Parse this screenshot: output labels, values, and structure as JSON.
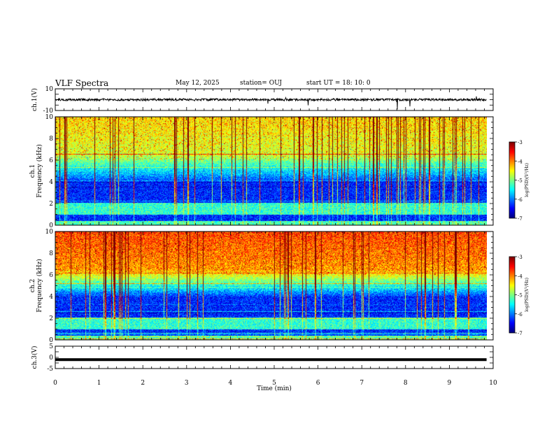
{
  "header": {
    "title": "VLF Spectra",
    "date": "May 12, 2025",
    "station": "station= OUJ",
    "start": "start  UT =   18: 10: 0"
  },
  "chart_data": [
    {
      "type": "line",
      "ylabel": "ch.1(V)",
      "ylim": [
        -10,
        10
      ],
      "yticks": [
        "10",
        "-10"
      ],
      "xlim": [
        0,
        10
      ],
      "mean_value": 0,
      "grid": false
    },
    {
      "type": "heatmap",
      "ylabel_lines": [
        "ch.1",
        "Frequency  (kHz)"
      ],
      "ylim": [
        0,
        10
      ],
      "yticks": [
        "10",
        "8",
        "6",
        "4",
        "2",
        "0"
      ],
      "xlim": [
        0,
        10
      ],
      "data_end_min": 9.85,
      "colorbar": {
        "label": "log(PSD)(V²/Hz)",
        "range": [
          -7,
          -3
        ],
        "ticks": [
          "-3",
          "-4",
          "-5",
          "-6",
          "-7"
        ]
      }
    },
    {
      "type": "heatmap",
      "ylabel_lines": [
        "ch.2",
        "Frequency  (kHz)"
      ],
      "ylim": [
        0,
        10
      ],
      "yticks": [
        "10",
        "8",
        "6",
        "4",
        "2",
        "0"
      ],
      "xlim": [
        0,
        10
      ],
      "data_end_min": 9.85,
      "colorbar": {
        "label": "log(PSD)(V²/Hz)",
        "range": [
          -7,
          -3
        ],
        "ticks": [
          "-3",
          "-4",
          "-5",
          "-6",
          "-7"
        ]
      }
    },
    {
      "type": "line",
      "ylabel": "ch.3(V)",
      "ylim": [
        -5,
        5
      ],
      "yticks": [
        "5",
        "0",
        "-5"
      ],
      "xlim": [
        0,
        10
      ],
      "mean_value": -1,
      "xlabel": "Time  (min)",
      "xticks": [
        "0",
        "1",
        "2",
        "3",
        "4",
        "5",
        "6",
        "7",
        "8",
        "9",
        "10"
      ]
    }
  ]
}
